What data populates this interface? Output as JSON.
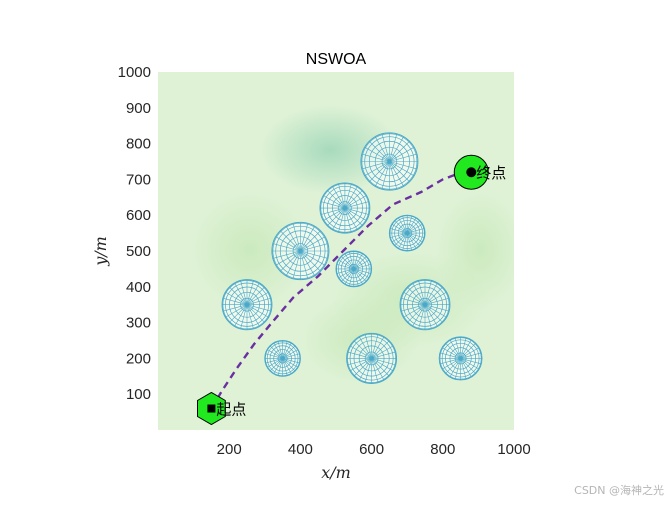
{
  "chart_data": {
    "type": "scatter",
    "title": "NSWOA",
    "xlabel": "x/m",
    "ylabel": "y/m",
    "xlim": [
      0,
      1000
    ],
    "ylim": [
      0,
      1000
    ],
    "xticks": [
      200,
      400,
      600,
      800,
      1000
    ],
    "yticks": [
      100,
      200,
      300,
      400,
      500,
      600,
      700,
      800,
      900,
      1000
    ],
    "grid": false,
    "start": {
      "x": 150,
      "y": 60,
      "label": "起点"
    },
    "goal": {
      "x": 880,
      "y": 720,
      "label": "终点"
    },
    "obstacles": [
      {
        "x": 650,
        "y": 750,
        "r": 80
      },
      {
        "x": 525,
        "y": 620,
        "r": 70
      },
      {
        "x": 700,
        "y": 550,
        "r": 50
      },
      {
        "x": 400,
        "y": 500,
        "r": 80
      },
      {
        "x": 550,
        "y": 450,
        "r": 50
      },
      {
        "x": 250,
        "y": 350,
        "r": 70
      },
      {
        "x": 750,
        "y": 350,
        "r": 70
      },
      {
        "x": 350,
        "y": 200,
        "r": 50
      },
      {
        "x": 600,
        "y": 200,
        "r": 70
      },
      {
        "x": 850,
        "y": 200,
        "r": 60
      }
    ],
    "path": [
      {
        "x": 150,
        "y": 60
      },
      {
        "x": 180,
        "y": 110
      },
      {
        "x": 220,
        "y": 170
      },
      {
        "x": 270,
        "y": 240
      },
      {
        "x": 320,
        "y": 300
      },
      {
        "x": 380,
        "y": 370
      },
      {
        "x": 450,
        "y": 430
      },
      {
        "x": 520,
        "y": 500
      },
      {
        "x": 590,
        "y": 570
      },
      {
        "x": 660,
        "y": 630
      },
      {
        "x": 740,
        "y": 665
      },
      {
        "x": 800,
        "y": 700
      },
      {
        "x": 840,
        "y": 715
      },
      {
        "x": 880,
        "y": 720
      }
    ],
    "colors": {
      "background": "#dff2d6",
      "field_dark": "#9ed6b8",
      "obstacle_line": "#4aa8c8",
      "path": "#6a2fa0",
      "marker_fill": "#22e81f"
    }
  },
  "watermark": "CSDN @海神之光"
}
